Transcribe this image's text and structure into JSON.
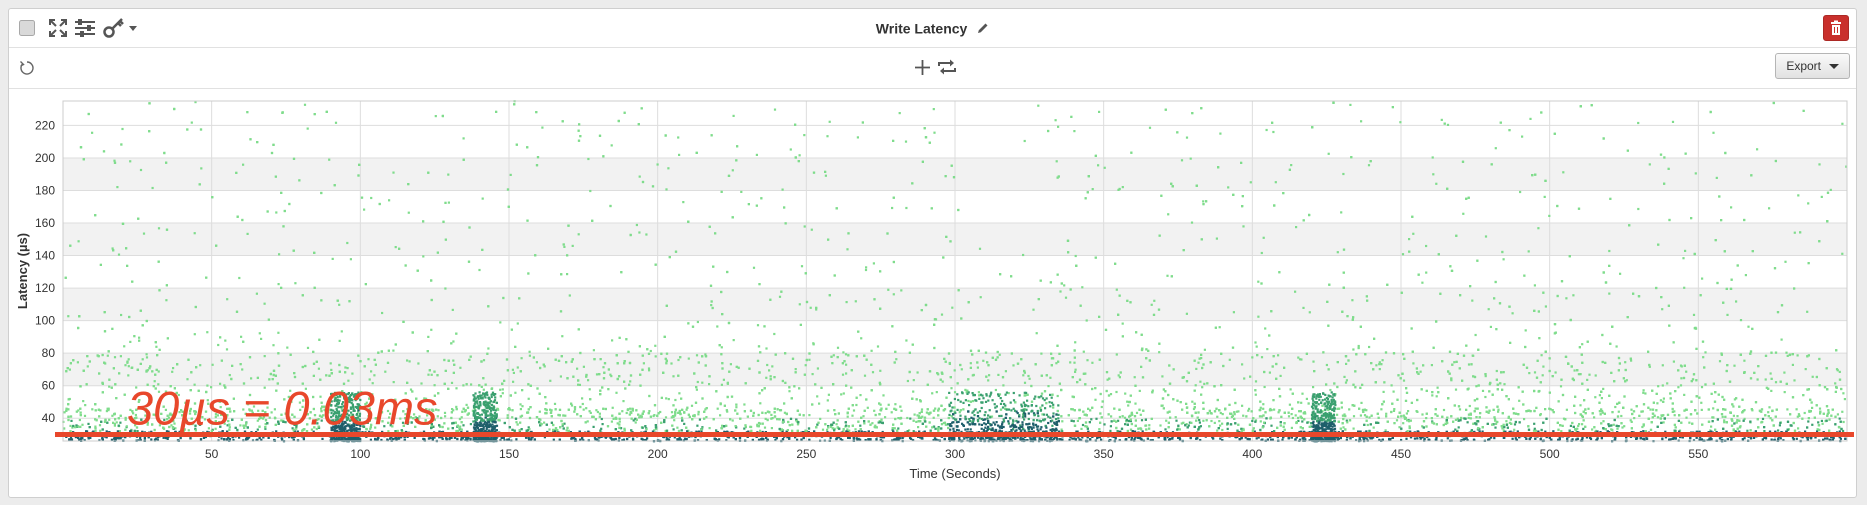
{
  "header": {
    "title": "Write Latency",
    "icons": [
      "checkbox-icon",
      "fullscreen-icon",
      "sliders-icon",
      "key-icon",
      "chevron-down-icon",
      "pencil-icon",
      "trash-icon"
    ]
  },
  "toolbar": {
    "export_label": "Export",
    "icons": [
      "reset-zoom-icon",
      "add-icon",
      "swap-icon"
    ]
  },
  "colors": {
    "point_light": "#7fdc8c",
    "point_mid": "#3aa06f",
    "point_dark": "#1f5f6b",
    "annotation": "#e8472b",
    "delete_button": "#c9302c"
  },
  "chart_data": {
    "type": "scatter",
    "xlabel": "Time (Seconds)",
    "ylabel": "Latency (µs)",
    "xlim": [
      0,
      600
    ],
    "ylim": [
      26,
      235
    ],
    "xticks": [
      50,
      100,
      150,
      200,
      250,
      300,
      350,
      400,
      450,
      500,
      550
    ],
    "yticks": [
      40,
      60,
      80,
      100,
      120,
      140,
      160,
      180,
      200,
      220
    ],
    "grid": true,
    "point_density_by_latency": [
      {
        "from": 26,
        "to": 32,
        "level": "very high"
      },
      {
        "from": 32,
        "to": 45,
        "level": "high"
      },
      {
        "from": 45,
        "to": 80,
        "level": "medium"
      },
      {
        "from": 80,
        "to": 235,
        "level": "sparse"
      }
    ],
    "dense_time_ranges": [
      [
        90,
        100
      ],
      [
        138,
        146
      ],
      [
        298,
        335
      ],
      [
        420,
        428
      ]
    ],
    "annotation": {
      "text": "30µs = 0.03ms",
      "y": 30
    }
  }
}
